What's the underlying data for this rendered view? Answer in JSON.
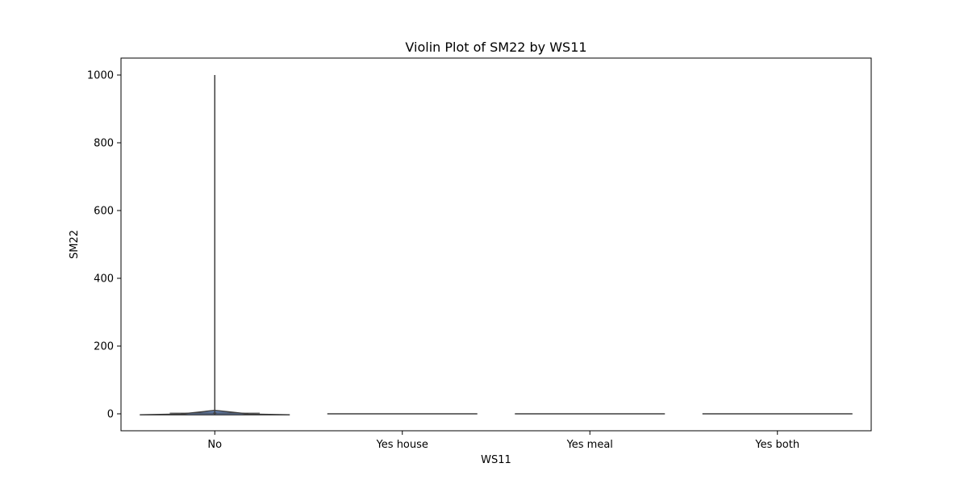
{
  "chart_data": {
    "type": "violin",
    "title": "Violin Plot of SM22 by WS11",
    "xlabel": "WS11",
    "ylabel": "SM22",
    "categories": [
      "No",
      "Yes house",
      "Yes meal",
      "Yes both"
    ],
    "ylim": [
      -50,
      1050
    ],
    "yticks": [
      0,
      200,
      400,
      600,
      800,
      1000
    ],
    "violins": [
      {
        "category": "No",
        "min": -3,
        "q1": 0,
        "median": 2,
        "q3": 4,
        "max": 1000,
        "body_bottom": -3,
        "body_top": 10,
        "max_density_width": 0.8
      },
      {
        "category": "Yes house",
        "min": 0,
        "q1": 0,
        "median": 0,
        "q3": 0,
        "max": 0,
        "flat": true
      },
      {
        "category": "Yes meal",
        "min": 0,
        "q1": 0,
        "median": 0,
        "q3": 0,
        "max": 0,
        "flat": true
      },
      {
        "category": "Yes both",
        "min": 0,
        "q1": 0,
        "median": 0,
        "q3": 0,
        "max": 0,
        "flat": true
      }
    ],
    "grid": false,
    "colors": {
      "fill": "#4c72b0",
      "edge": "#3f3f3f",
      "axis": "#000000"
    }
  }
}
